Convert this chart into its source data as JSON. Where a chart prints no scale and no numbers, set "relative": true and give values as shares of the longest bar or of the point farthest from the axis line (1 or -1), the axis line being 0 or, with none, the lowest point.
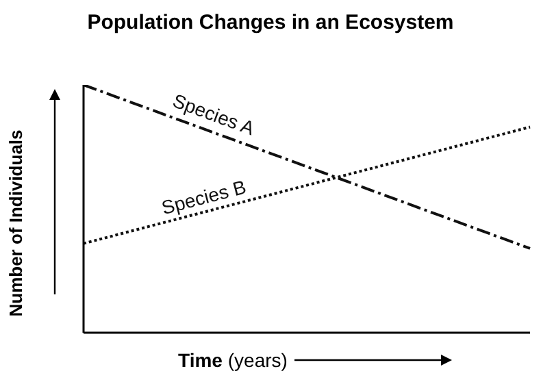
{
  "chart_data": {
    "type": "line",
    "title": "Population Changes in an Ecosystem",
    "xlabel": "Time (years)",
    "ylabel": "Number of Individuals",
    "categories": [
      null,
      null
    ],
    "relative": true,
    "marker": "none",
    "series": [
      {
        "name": "Species A",
        "color": "#111111",
        "values": [
          1,
          0.34
        ],
        "line_style": "dashed"
      },
      {
        "name": "Species B",
        "color": "#111111",
        "values": [
          0.36,
          0.83
        ],
        "line_style": "dotted"
      }
    ]
  }
}
